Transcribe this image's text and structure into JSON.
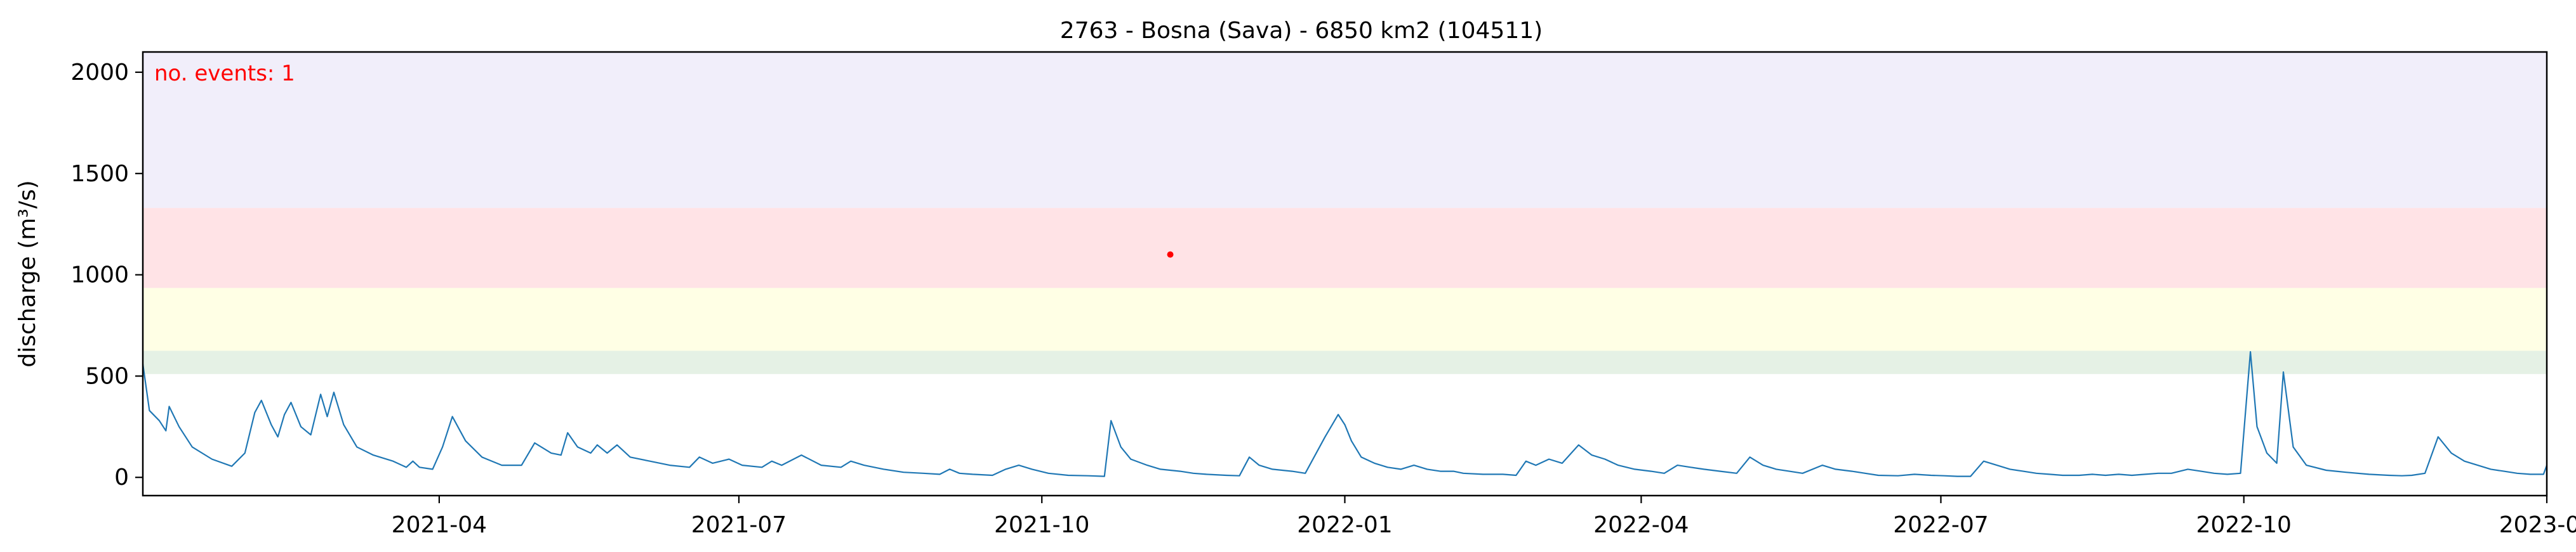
{
  "chart_data": {
    "type": "line",
    "title": "2763 - Bosna (Sava) - 6850 km2 (104511)",
    "xlabel": "",
    "ylabel": "discharge (m³/s)",
    "xlim": [
      "2021-01-01",
      "2023-01-01"
    ],
    "ylim": [
      -90,
      2100
    ],
    "x_tick_labels": [
      "2021-04",
      "2021-07",
      "2021-10",
      "2022-01",
      "2022-04",
      "2022-07",
      "2022-10",
      "2023-01"
    ],
    "x_tick_dates": [
      "2021-04-01",
      "2021-07-01",
      "2021-10-01",
      "2022-01-01",
      "2022-04-01",
      "2022-07-01",
      "2022-10-01",
      "2023-01-01"
    ],
    "y_ticks": [
      0,
      500,
      1000,
      1500,
      2000
    ],
    "grid": false,
    "threshold_bands": [
      {
        "from": 510,
        "to": 625,
        "color": "#e5f1e5"
      },
      {
        "from": 625,
        "to": 935,
        "color": "#ffffe5"
      },
      {
        "from": 935,
        "to": 1330,
        "color": "#ffe3e6"
      },
      {
        "from": 1330,
        "to": 2100,
        "color": "#f1eefa"
      }
    ],
    "annotation": {
      "text": "no. events: 1",
      "color": "#ff0000"
    },
    "events": [
      {
        "date": "2021-11-09",
        "value": 1100
      }
    ],
    "series": [
      {
        "color": "#1f77b4",
        "points": [
          [
            "2021-01-01",
            560
          ],
          [
            "2021-01-03",
            330
          ],
          [
            "2021-01-06",
            280
          ],
          [
            "2021-01-08",
            230
          ],
          [
            "2021-01-09",
            350
          ],
          [
            "2021-01-12",
            250
          ],
          [
            "2021-01-16",
            150
          ],
          [
            "2021-01-22",
            90
          ],
          [
            "2021-01-28",
            55
          ],
          [
            "2021-02-01",
            120
          ],
          [
            "2021-02-04",
            320
          ],
          [
            "2021-02-06",
            380
          ],
          [
            "2021-02-09",
            260
          ],
          [
            "2021-02-11",
            200
          ],
          [
            "2021-02-13",
            310
          ],
          [
            "2021-02-15",
            370
          ],
          [
            "2021-02-18",
            250
          ],
          [
            "2021-02-21",
            210
          ],
          [
            "2021-02-24",
            410
          ],
          [
            "2021-02-26",
            300
          ],
          [
            "2021-02-28",
            420
          ],
          [
            "2021-03-03",
            260
          ],
          [
            "2021-03-07",
            150
          ],
          [
            "2021-03-12",
            110
          ],
          [
            "2021-03-18",
            80
          ],
          [
            "2021-03-22",
            50
          ],
          [
            "2021-03-24",
            80
          ],
          [
            "2021-03-26",
            50
          ],
          [
            "2021-03-30",
            40
          ],
          [
            "2021-04-02",
            150
          ],
          [
            "2021-04-05",
            300
          ],
          [
            "2021-04-09",
            180
          ],
          [
            "2021-04-14",
            100
          ],
          [
            "2021-04-20",
            60
          ],
          [
            "2021-04-26",
            60
          ],
          [
            "2021-04-30",
            170
          ],
          [
            "2021-05-05",
            120
          ],
          [
            "2021-05-08",
            110
          ],
          [
            "2021-05-10",
            220
          ],
          [
            "2021-05-13",
            150
          ],
          [
            "2021-05-17",
            120
          ],
          [
            "2021-05-19",
            160
          ],
          [
            "2021-05-22",
            120
          ],
          [
            "2021-05-25",
            160
          ],
          [
            "2021-05-29",
            100
          ],
          [
            "2021-06-04",
            80
          ],
          [
            "2021-06-10",
            60
          ],
          [
            "2021-06-16",
            50
          ],
          [
            "2021-06-19",
            100
          ],
          [
            "2021-06-23",
            70
          ],
          [
            "2021-06-28",
            90
          ],
          [
            "2021-07-02",
            60
          ],
          [
            "2021-07-08",
            50
          ],
          [
            "2021-07-11",
            80
          ],
          [
            "2021-07-14",
            60
          ],
          [
            "2021-07-20",
            110
          ],
          [
            "2021-07-26",
            60
          ],
          [
            "2021-08-01",
            50
          ],
          [
            "2021-08-04",
            80
          ],
          [
            "2021-08-08",
            60
          ],
          [
            "2021-08-14",
            40
          ],
          [
            "2021-08-20",
            25
          ],
          [
            "2021-08-26",
            20
          ],
          [
            "2021-08-31",
            15
          ],
          [
            "2021-09-03",
            40
          ],
          [
            "2021-09-06",
            20
          ],
          [
            "2021-09-10",
            15
          ],
          [
            "2021-09-16",
            10
          ],
          [
            "2021-09-20",
            40
          ],
          [
            "2021-09-24",
            60
          ],
          [
            "2021-09-28",
            40
          ],
          [
            "2021-10-03",
            20
          ],
          [
            "2021-10-09",
            10
          ],
          [
            "2021-10-15",
            8
          ],
          [
            "2021-10-20",
            5
          ],
          [
            "2021-10-22",
            280
          ],
          [
            "2021-10-25",
            150
          ],
          [
            "2021-10-28",
            90
          ],
          [
            "2021-11-02",
            60
          ],
          [
            "2021-11-06",
            40
          ],
          [
            "2021-11-12",
            30
          ],
          [
            "2021-11-16",
            20
          ],
          [
            "2021-11-20",
            15
          ],
          [
            "2021-11-26",
            10
          ],
          [
            "2021-11-30",
            8
          ],
          [
            "2021-12-03",
            100
          ],
          [
            "2021-12-06",
            60
          ],
          [
            "2021-12-10",
            40
          ],
          [
            "2021-12-16",
            30
          ],
          [
            "2021-12-20",
            20
          ],
          [
            "2021-12-26",
            200
          ],
          [
            "2021-12-30",
            310
          ],
          [
            "2022-01-01",
            260
          ],
          [
            "2022-01-03",
            180
          ],
          [
            "2022-01-06",
            100
          ],
          [
            "2022-01-10",
            70
          ],
          [
            "2022-01-14",
            50
          ],
          [
            "2022-01-18",
            40
          ],
          [
            "2022-01-22",
            60
          ],
          [
            "2022-01-26",
            40
          ],
          [
            "2022-01-30",
            30
          ],
          [
            "2022-02-03",
            30
          ],
          [
            "2022-02-06",
            20
          ],
          [
            "2022-02-12",
            15
          ],
          [
            "2022-02-18",
            15
          ],
          [
            "2022-02-22",
            10
          ],
          [
            "2022-02-25",
            80
          ],
          [
            "2022-02-28",
            60
          ],
          [
            "2022-03-04",
            90
          ],
          [
            "2022-03-08",
            70
          ],
          [
            "2022-03-13",
            160
          ],
          [
            "2022-03-17",
            110
          ],
          [
            "2022-03-21",
            90
          ],
          [
            "2022-03-25",
            60
          ],
          [
            "2022-03-30",
            40
          ],
          [
            "2022-04-04",
            30
          ],
          [
            "2022-04-08",
            20
          ],
          [
            "2022-04-12",
            60
          ],
          [
            "2022-04-16",
            50
          ],
          [
            "2022-04-20",
            40
          ],
          [
            "2022-04-25",
            30
          ],
          [
            "2022-04-30",
            20
          ],
          [
            "2022-05-04",
            100
          ],
          [
            "2022-05-08",
            60
          ],
          [
            "2022-05-12",
            40
          ],
          [
            "2022-05-16",
            30
          ],
          [
            "2022-05-20",
            20
          ],
          [
            "2022-05-26",
            60
          ],
          [
            "2022-05-30",
            40
          ],
          [
            "2022-06-04",
            30
          ],
          [
            "2022-06-08",
            20
          ],
          [
            "2022-06-12",
            10
          ],
          [
            "2022-06-18",
            8
          ],
          [
            "2022-06-23",
            15
          ],
          [
            "2022-06-28",
            10
          ],
          [
            "2022-07-02",
            8
          ],
          [
            "2022-07-06",
            5
          ],
          [
            "2022-07-10",
            5
          ],
          [
            "2022-07-14",
            80
          ],
          [
            "2022-07-18",
            60
          ],
          [
            "2022-07-22",
            40
          ],
          [
            "2022-07-26",
            30
          ],
          [
            "2022-07-30",
            20
          ],
          [
            "2022-08-03",
            15
          ],
          [
            "2022-08-07",
            10
          ],
          [
            "2022-08-12",
            10
          ],
          [
            "2022-08-16",
            15
          ],
          [
            "2022-08-20",
            10
          ],
          [
            "2022-08-24",
            15
          ],
          [
            "2022-08-28",
            10
          ],
          [
            "2022-09-01",
            15
          ],
          [
            "2022-09-05",
            20
          ],
          [
            "2022-09-09",
            20
          ],
          [
            "2022-09-14",
            40
          ],
          [
            "2022-09-18",
            30
          ],
          [
            "2022-09-22",
            20
          ],
          [
            "2022-09-26",
            15
          ],
          [
            "2022-09-30",
            20
          ],
          [
            "2022-10-03",
            620
          ],
          [
            "2022-10-05",
            250
          ],
          [
            "2022-10-08",
            120
          ],
          [
            "2022-10-11",
            70
          ],
          [
            "2022-10-13",
            520
          ],
          [
            "2022-10-16",
            150
          ],
          [
            "2022-10-20",
            60
          ],
          [
            "2022-10-26",
            35
          ],
          [
            "2022-11-01",
            25
          ],
          [
            "2022-11-08",
            15
          ],
          [
            "2022-11-14",
            10
          ],
          [
            "2022-11-18",
            8
          ],
          [
            "2022-11-21",
            10
          ],
          [
            "2022-11-25",
            20
          ],
          [
            "2022-11-29",
            200
          ],
          [
            "2022-12-03",
            120
          ],
          [
            "2022-12-07",
            80
          ],
          [
            "2022-12-11",
            60
          ],
          [
            "2022-12-15",
            40
          ],
          [
            "2022-12-19",
            30
          ],
          [
            "2022-12-23",
            20
          ],
          [
            "2022-12-27",
            15
          ],
          [
            "2022-12-31",
            15
          ],
          [
            "2023-01-01",
            60
          ]
        ]
      }
    ]
  }
}
